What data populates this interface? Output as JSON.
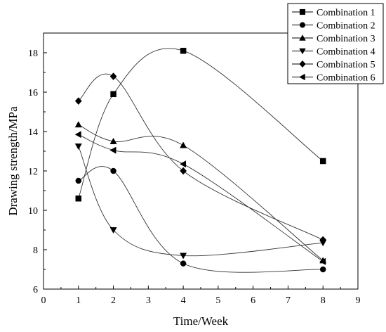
{
  "chart_data": {
    "type": "line",
    "title": "",
    "xlabel": "Time/Week",
    "ylabel": "Drawing strength/MPa",
    "xlim": [
      0,
      9
    ],
    "ylim": [
      6,
      19
    ],
    "x_ticks": [
      0,
      1,
      2,
      3,
      4,
      5,
      6,
      7,
      8,
      9
    ],
    "y_ticks": [
      6,
      8,
      10,
      12,
      14,
      16,
      18
    ],
    "grid": false,
    "smooth": true,
    "legend_position": "top-right",
    "x": [
      1,
      2,
      4,
      8
    ],
    "series": [
      {
        "name": "Combination 1",
        "marker": "square",
        "values": [
          10.6,
          15.9,
          18.1,
          12.5
        ]
      },
      {
        "name": "Combination 2",
        "marker": "circle",
        "values": [
          11.5,
          12.0,
          7.3,
          7.0
        ]
      },
      {
        "name": "Combination 3",
        "marker": "triangle-up",
        "values": [
          14.35,
          13.5,
          13.3,
          7.45
        ]
      },
      {
        "name": "Combination 4",
        "marker": "triangle-down",
        "values": [
          13.25,
          9.0,
          7.7,
          8.35
        ]
      },
      {
        "name": "Combination 5",
        "marker": "diamond",
        "values": [
          15.55,
          16.8,
          12.0,
          8.5
        ]
      },
      {
        "name": "Combination 6",
        "marker": "triangle-left",
        "values": [
          13.85,
          13.05,
          12.35,
          7.4
        ]
      }
    ]
  }
}
